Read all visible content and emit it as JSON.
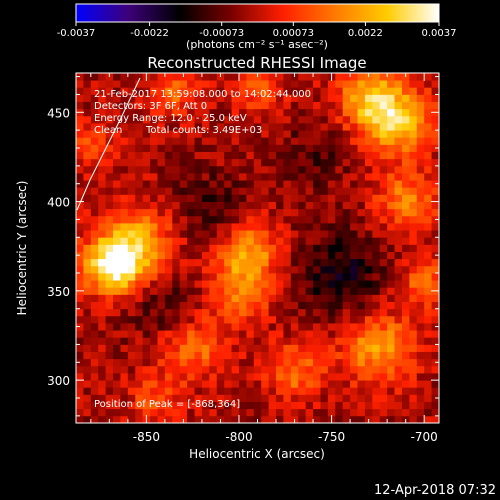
{
  "chart_data": {
    "type": "heatmap",
    "title": "Reconstructed RHESSI Image",
    "xlabel": "Heliocentric X (arcsec)",
    "ylabel": "Heliocentric Y (arcsec)",
    "xlim": [
      -888,
      -692
    ],
    "ylim": [
      276,
      472
    ],
    "x_ticks": [
      -850,
      -800,
      -750,
      -700
    ],
    "y_ticks": [
      300,
      350,
      400,
      450
    ],
    "x_tick_labels": [
      "-850",
      "-800",
      "-750",
      "-700"
    ],
    "y_tick_labels": [
      "300",
      "350",
      "400",
      "450"
    ],
    "colorbar": {
      "min": -0.0037,
      "max": 0.0037,
      "ticks": [
        -0.0037,
        -0.0022,
        -0.00073,
        0.00073,
        0.0022,
        0.0037
      ],
      "tick_labels": [
        "-0.0037",
        "-0.0022",
        "-0.00073",
        "0.00073",
        "0.0022",
        "0.0037"
      ],
      "units": "(photons cm⁻² s⁻¹ asec⁻²)",
      "colors": [
        "#0000ff",
        "#3d007a",
        "#000000",
        "#7a0000",
        "#ff2000",
        "#ff7a00",
        "#ffcc00",
        "#ffffff"
      ]
    },
    "grid_cell_arcsec": 4,
    "annotations": [
      "21-Feb-2017 13:59:08.000 to 14:02:44.000",
      "Detectors: 3F 6F, Att 0",
      "Energy Range: 12.0 - 25.0 keV",
      "Clean",
      "Total counts: 3.49E+03"
    ],
    "peak_label": "Position of Peak = [-868,364]",
    "peak": {
      "x": -868,
      "y": 364
    },
    "sources": [
      {
        "x": -868,
        "y": 364,
        "amp": 0.0037,
        "sigma": 11
      },
      {
        "x": -855,
        "y": 378,
        "amp": 0.0022,
        "sigma": 14
      },
      {
        "x": -795,
        "y": 372,
        "amp": 0.0023,
        "sigma": 12
      },
      {
        "x": -800,
        "y": 348,
        "amp": 0.0016,
        "sigma": 12
      },
      {
        "x": -715,
        "y": 445,
        "amp": 0.0029,
        "sigma": 13
      },
      {
        "x": -730,
        "y": 460,
        "amp": 0.0022,
        "sigma": 12
      },
      {
        "x": -710,
        "y": 400,
        "amp": 0.0018,
        "sigma": 12
      },
      {
        "x": -725,
        "y": 318,
        "amp": 0.0022,
        "sigma": 14
      },
      {
        "x": -770,
        "y": 305,
        "amp": 0.0016,
        "sigma": 11
      },
      {
        "x": -825,
        "y": 318,
        "amp": 0.0017,
        "sigma": 12
      },
      {
        "x": -845,
        "y": 290,
        "amp": 0.0012,
        "sigma": 10
      },
      {
        "x": -835,
        "y": 462,
        "amp": 0.0014,
        "sigma": 10
      },
      {
        "x": -790,
        "y": 462,
        "amp": 0.0012,
        "sigma": 10
      },
      {
        "x": -880,
        "y": 432,
        "amp": 0.001,
        "sigma": 10
      },
      {
        "x": -700,
        "y": 355,
        "amp": 0.0015,
        "sigma": 10
      }
    ],
    "dips": [
      {
        "x": -745,
        "y": 360,
        "amp": -0.0013,
        "sigma": 18
      },
      {
        "x": -815,
        "y": 395,
        "amp": -0.0009,
        "sigma": 15
      },
      {
        "x": -840,
        "y": 340,
        "amp": -0.0008,
        "sigma": 14
      },
      {
        "x": -760,
        "y": 425,
        "amp": -0.0007,
        "sigma": 14
      }
    ]
  },
  "footer": {
    "date": "12-Apr-2018 07:32"
  }
}
